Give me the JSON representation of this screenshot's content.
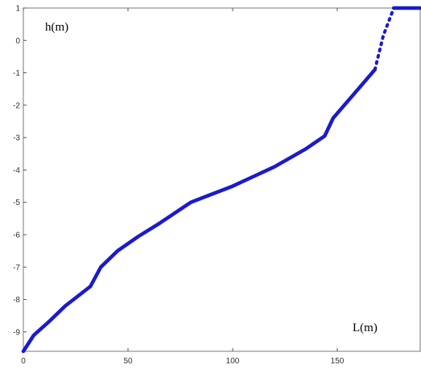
{
  "chart_data": {
    "type": "line",
    "title": "",
    "xlabel": "L(m)",
    "ylabel": "h(m)",
    "xlim": [
      0,
      190
    ],
    "ylim": [
      -9.6,
      1
    ],
    "x_ticks": [
      0,
      50,
      100,
      150
    ],
    "x_tick_labels": [
      "0",
      "50",
      "100",
      "150"
    ],
    "y_ticks": [
      1,
      0,
      -1,
      -2,
      -3,
      -4,
      -5,
      -6,
      -7,
      -8,
      -9
    ],
    "y_tick_labels": [
      "1",
      "0",
      "-1",
      "-2",
      "-3",
      "-4",
      "-5",
      "-6",
      "-7",
      "-8",
      "-9"
    ],
    "grid": false,
    "series": [
      {
        "style": "solid",
        "color": "#1a1acd",
        "points": [
          [
            0,
            -9.6
          ],
          [
            5,
            -9.1
          ],
          [
            12,
            -8.7
          ],
          [
            20,
            -8.2
          ],
          [
            32,
            -7.6
          ],
          [
            37,
            -7.0
          ],
          [
            45,
            -6.5
          ],
          [
            55,
            -6.05
          ],
          [
            65,
            -5.65
          ],
          [
            80,
            -5.0
          ],
          [
            90,
            -4.75
          ],
          [
            100,
            -4.5
          ],
          [
            110,
            -4.2
          ],
          [
            120,
            -3.9
          ],
          [
            135,
            -3.35
          ],
          [
            144,
            -2.95
          ],
          [
            148,
            -2.4
          ],
          [
            158,
            -1.65
          ],
          [
            168,
            -0.9
          ]
        ]
      },
      {
        "style": "dotted",
        "color": "#1a1acd",
        "points": [
          [
            168,
            -0.9
          ],
          [
            172,
            0.15
          ],
          [
            177,
            1
          ]
        ]
      },
      {
        "style": "solid",
        "color": "#1a1acd",
        "points": [
          [
            177,
            1
          ],
          [
            190,
            1
          ]
        ]
      }
    ]
  }
}
